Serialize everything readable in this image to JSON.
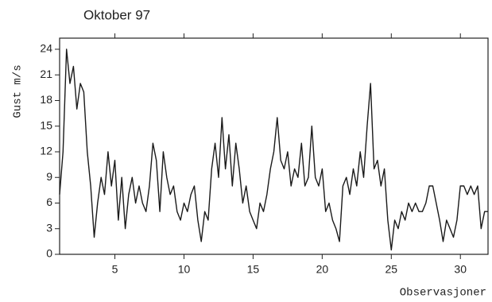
{
  "chart_data": {
    "type": "line",
    "title": "Oktober 97",
    "ylabel": "Gust m/s",
    "xlabel": "Observasjoner",
    "x": [
      1,
      1.25,
      1.5,
      1.75,
      2,
      2.25,
      2.5,
      2.75,
      3,
      3.25,
      3.5,
      3.75,
      4,
      4.25,
      4.5,
      4.75,
      5,
      5.25,
      5.5,
      5.75,
      6,
      6.25,
      6.5,
      6.75,
      7,
      7.25,
      7.5,
      7.75,
      8,
      8.25,
      8.5,
      8.75,
      9,
      9.25,
      9.5,
      9.75,
      10,
      10.25,
      10.5,
      10.75,
      11,
      11.25,
      11.5,
      11.75,
      12,
      12.25,
      12.5,
      12.75,
      13,
      13.25,
      13.5,
      13.75,
      14,
      14.25,
      14.5,
      14.75,
      15,
      15.25,
      15.5,
      15.75,
      16,
      16.25,
      16.5,
      16.75,
      17,
      17.25,
      17.5,
      17.75,
      18,
      18.25,
      18.5,
      18.75,
      19,
      19.25,
      19.5,
      19.75,
      20,
      20.25,
      20.5,
      20.75,
      21,
      21.25,
      21.5,
      21.75,
      22,
      22.25,
      22.5,
      22.75,
      23,
      23.25,
      23.5,
      23.75,
      24,
      24.25,
      24.5,
      24.75,
      25,
      25.25,
      25.5,
      25.75,
      26,
      26.25,
      26.5,
      26.75,
      27,
      27.25,
      27.5,
      27.75,
      28,
      28.25,
      28.5,
      28.75,
      29,
      29.25,
      29.5,
      29.75,
      30,
      30.25,
      30.5,
      30.75,
      31,
      31.25,
      31.5,
      31.75,
      32
    ],
    "series": [
      {
        "name": "Gust",
        "color": "#1a1a1a",
        "values": [
          7,
          12,
          24,
          20,
          22,
          17,
          20,
          19,
          12,
          8,
          2,
          6,
          9,
          7,
          12,
          8,
          11,
          4,
          9,
          3,
          7,
          9,
          6,
          8,
          6,
          5,
          8,
          13,
          11,
          5,
          12,
          9,
          7,
          8,
          5,
          4,
          6,
          5,
          7,
          8,
          4,
          1.5,
          5,
          4,
          10,
          13,
          9,
          16,
          10,
          14,
          8,
          13,
          10,
          6,
          8,
          5,
          4,
          3,
          6,
          5,
          7,
          10,
          12,
          16,
          11,
          10,
          12,
          8,
          10,
          9,
          13,
          8,
          9,
          15,
          9,
          8,
          10,
          5,
          6,
          4,
          3,
          1.5,
          8,
          9,
          7,
          10,
          8,
          12,
          9,
          15,
          20,
          10,
          11,
          8,
          10,
          4,
          0.5,
          4,
          3,
          5,
          4,
          6,
          5,
          6,
          5,
          5,
          6,
          8,
          8,
          6,
          4,
          1.5,
          4,
          3,
          2,
          4,
          8,
          8,
          7,
          8,
          7,
          8,
          3,
          5,
          5
        ]
      }
    ],
    "xlim": [
      1,
      32
    ],
    "ylim": [
      0,
      25.3
    ],
    "xticks": [
      5,
      10,
      15,
      20,
      25,
      30
    ],
    "yticks": [
      0,
      3,
      6,
      9,
      12,
      15,
      18,
      21,
      24
    ]
  }
}
